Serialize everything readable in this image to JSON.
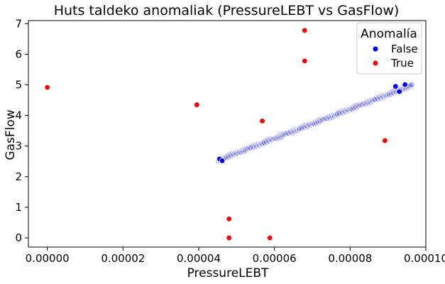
{
  "chart_data": {
    "type": "scatter",
    "title": "Huts taldeko anomaliak (PressureLEBT vs GasFlow)",
    "xlabel": "PressureLEBT",
    "ylabel": "GasFlow",
    "xlim": [
      -5e-06,
      0.0001
    ],
    "ylim": [
      -0.3,
      7.1
    ],
    "xticks": [
      "0.00000",
      "0.00002",
      "0.00004",
      "0.00006",
      "0.00008",
      "0.00010"
    ],
    "xtick_values": [
      0,
      2e-05,
      4e-05,
      6e-05,
      8e-05,
      0.0001
    ],
    "yticks": [
      "0",
      "1",
      "2",
      "3",
      "4",
      "5",
      "6",
      "7"
    ],
    "ytick_values": [
      0,
      1,
      2,
      3,
      4,
      5,
      6,
      7
    ],
    "grid": false,
    "legend": {
      "title": "Anomalía",
      "placement": "top-right",
      "entries": [
        {
          "label": "False",
          "color": "#0000ff"
        },
        {
          "label": "True",
          "color": "#ff0000"
        }
      ]
    },
    "series": [
      {
        "name": "False",
        "color": "#0000ff",
        "trend": {
          "x_start": 4.52e-05,
          "y_start": 2.54,
          "x_end": 9.65e-05,
          "y_end": 5.0,
          "n_points": 160
        },
        "points": [
          {
            "x": 4.55e-05,
            "y": 2.58
          },
          {
            "x": 4.62e-05,
            "y": 2.52
          },
          {
            "x": 9.45e-05,
            "y": 5.01
          },
          {
            "x": 9.2e-05,
            "y": 4.95
          },
          {
            "x": 9.3e-05,
            "y": 4.78
          }
        ]
      },
      {
        "name": "True",
        "color": "#ff0000",
        "points": [
          {
            "x": 0.0,
            "y": 4.92
          },
          {
            "x": 3.95e-05,
            "y": 4.35
          },
          {
            "x": 5.68e-05,
            "y": 3.82
          },
          {
            "x": 6.8e-05,
            "y": 6.78
          },
          {
            "x": 6.8e-05,
            "y": 5.78
          },
          {
            "x": 8.92e-05,
            "y": 3.18
          },
          {
            "x": 4.8e-05,
            "y": 0.62
          },
          {
            "x": 4.8e-05,
            "y": 0.0
          },
          {
            "x": 5.88e-05,
            "y": 0.0
          }
        ]
      }
    ]
  }
}
